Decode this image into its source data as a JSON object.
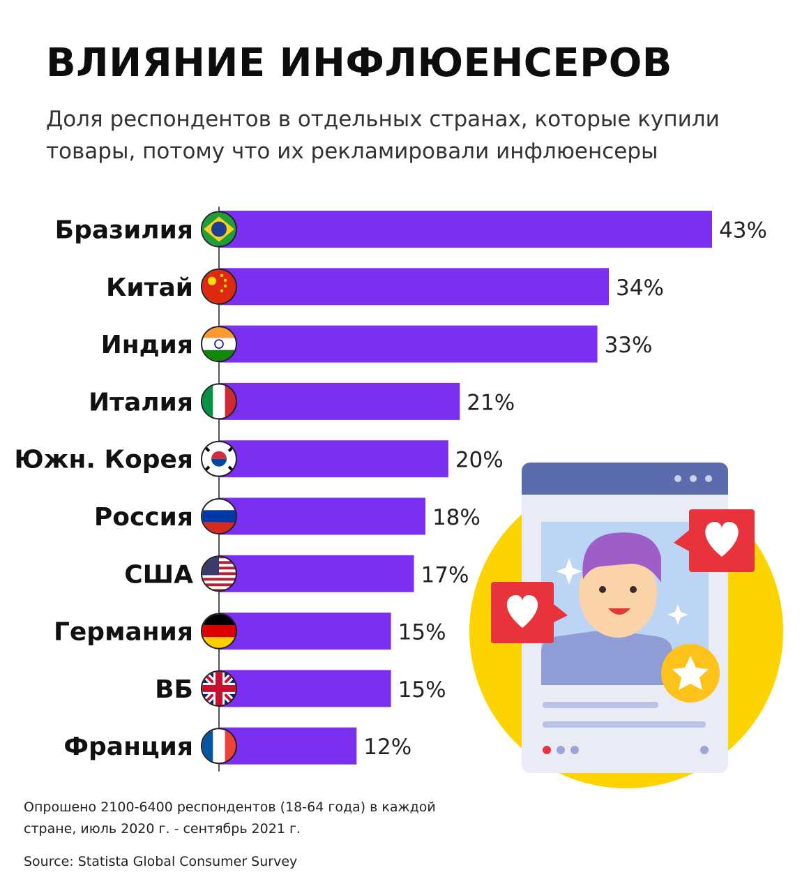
{
  "header": {
    "title": "ВЛИЯНИЕ ИНФЛЮЕНСЕРОВ",
    "subtitle": "Доля респондентов в отдельных странах, которые купили товары, потому что их рекламировали инфлюенсеры"
  },
  "chart_data": {
    "type": "bar",
    "orientation": "horizontal",
    "categories": [
      "Бразилия",
      "Китай",
      "Индия",
      "Италия",
      "Южн. Корея",
      "Россия",
      "США",
      "Германия",
      "ВБ",
      "Франция"
    ],
    "values": [
      43,
      34,
      33,
      21,
      20,
      18,
      17,
      15,
      15,
      12
    ],
    "value_labels": [
      "43%",
      "34%",
      "33%",
      "21%",
      "20%",
      "18%",
      "17%",
      "15%",
      "15%",
      "12%"
    ],
    "flags": [
      "brazil-flag-icon",
      "china-flag-icon",
      "india-flag-icon",
      "italy-flag-icon",
      "south-korea-flag-icon",
      "russia-flag-icon",
      "usa-flag-icon",
      "germany-flag-icon",
      "uk-flag-icon",
      "france-flag-icon"
    ],
    "bar_color": "#7b2ff0",
    "grid": false,
    "legend": "none"
  },
  "footer": {
    "note": "Опрошено 2100-6400 респондентов (18-64 года) в каждой стране, июль 2020 г. - сентябрь 2021 г.",
    "source": "Source: Statista Global Consumer Survey"
  },
  "illustration": {
    "name": "influencer-post-illustration",
    "colors": {
      "circle": "#fdd300",
      "frame": "#5b6bad",
      "heart": "#e8333c",
      "star": "#ffc21a"
    }
  }
}
